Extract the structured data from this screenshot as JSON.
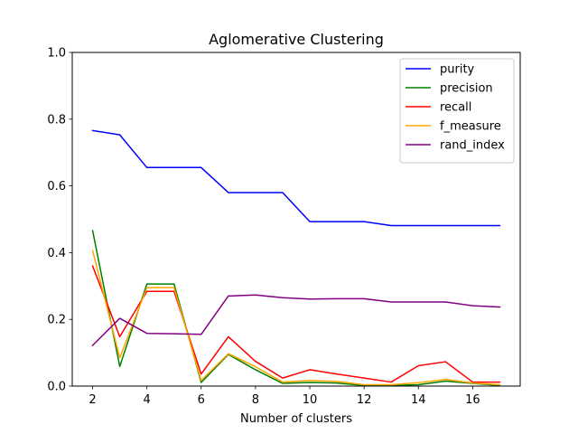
{
  "chart_data": {
    "type": "line",
    "title": "Aglomerative Clustering",
    "xlabel": "Number of clusters",
    "ylabel": "",
    "xlim": [
      1.25,
      17.75
    ],
    "ylim": [
      0,
      1.0
    ],
    "x": [
      2,
      3,
      4,
      5,
      6,
      7,
      8,
      9,
      10,
      11,
      12,
      13,
      14,
      15,
      16,
      17
    ],
    "xticks": [
      2,
      4,
      6,
      8,
      10,
      12,
      14,
      16
    ],
    "yticks": [
      0.0,
      0.2,
      0.4,
      0.6,
      0.8,
      1.0
    ],
    "ytick_labels": [
      "0.0",
      "0.2",
      "0.4",
      "0.6",
      "0.8",
      "1.0"
    ],
    "legend_position": "top-right",
    "grid": false,
    "series": [
      {
        "name": "purity",
        "color": "#0000ff",
        "values": [
          0.766,
          0.753,
          0.655,
          0.655,
          0.655,
          0.58,
          0.58,
          0.58,
          0.493,
          0.493,
          0.493,
          0.481,
          0.481,
          0.481,
          0.481,
          0.481
        ]
      },
      {
        "name": "precision",
        "color": "#008000",
        "values": [
          0.466,
          0.059,
          0.306,
          0.306,
          0.011,
          0.095,
          0.049,
          0.008,
          0.011,
          0.009,
          0.002,
          0.002,
          0.004,
          0.015,
          0.008,
          0.002
        ]
      },
      {
        "name": "recall",
        "color": "#ff0000",
        "values": [
          0.36,
          0.148,
          0.284,
          0.284,
          0.036,
          0.148,
          0.074,
          0.024,
          0.049,
          0.036,
          0.024,
          0.012,
          0.061,
          0.073,
          0.012,
          0.012
        ]
      },
      {
        "name": "f_measure",
        "color": "#ffa500",
        "values": [
          0.406,
          0.085,
          0.295,
          0.295,
          0.017,
          0.097,
          0.058,
          0.012,
          0.017,
          0.014,
          0.004,
          0.004,
          0.01,
          0.02,
          0.009,
          0.004
        ]
      },
      {
        "name": "rand_index",
        "color": "#800080",
        "values": [
          0.122,
          0.203,
          0.158,
          0.157,
          0.155,
          0.27,
          0.273,
          0.265,
          0.261,
          0.262,
          0.262,
          0.252,
          0.252,
          0.252,
          0.241,
          0.237
        ]
      }
    ]
  }
}
